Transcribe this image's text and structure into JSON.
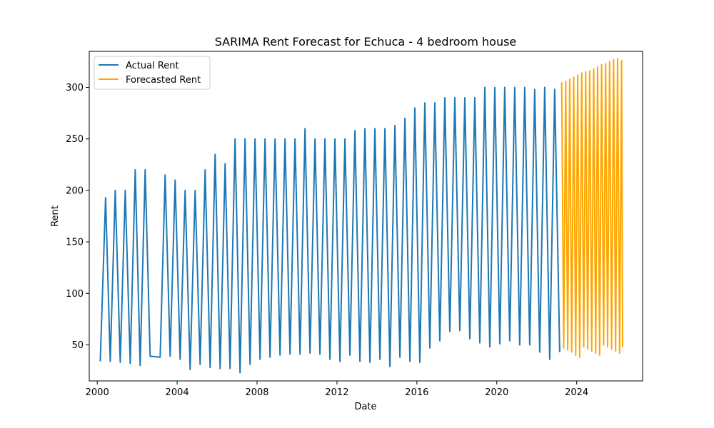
{
  "chart_data": {
    "type": "line",
    "title": "SARIMA Rent Forecast for Echuca - 4 bedroom house",
    "xlabel": "Date",
    "ylabel": "Rent",
    "xlim": [
      1999.6,
      2027.3
    ],
    "ylim": [
      15,
      335
    ],
    "x_ticks": [
      2000,
      2004,
      2008,
      2012,
      2016,
      2020,
      2024
    ],
    "x_tick_labels": [
      "2000",
      "2004",
      "2008",
      "2012",
      "2016",
      "2020",
      "2024"
    ],
    "y_ticks": [
      50,
      100,
      150,
      200,
      250,
      300
    ],
    "y_tick_labels": [
      "50",
      "100",
      "150",
      "200",
      "250",
      "300"
    ],
    "grid": false,
    "legend_position": "top-left",
    "series": [
      {
        "name": "Actual Rent",
        "color": "#1f77b4",
        "points": [
          [
            2000.15,
            34
          ],
          [
            2000.42,
            193
          ],
          [
            2000.65,
            34
          ],
          [
            2000.9,
            200
          ],
          [
            2001.15,
            33
          ],
          [
            2001.4,
            200
          ],
          [
            2001.65,
            32
          ],
          [
            2001.9,
            220
          ],
          [
            2002.15,
            30
          ],
          [
            2002.4,
            220
          ],
          [
            2002.65,
            39
          ],
          [
            2003.15,
            38
          ],
          [
            2003.4,
            215
          ],
          [
            2003.65,
            39
          ],
          [
            2003.9,
            210
          ],
          [
            2004.15,
            36
          ],
          [
            2004.4,
            200
          ],
          [
            2004.65,
            26
          ],
          [
            2004.9,
            200
          ],
          [
            2005.15,
            31
          ],
          [
            2005.4,
            220
          ],
          [
            2005.65,
            28
          ],
          [
            2005.9,
            235
          ],
          [
            2006.15,
            27
          ],
          [
            2006.4,
            226
          ],
          [
            2006.65,
            27
          ],
          [
            2006.9,
            250
          ],
          [
            2007.15,
            23
          ],
          [
            2007.4,
            250
          ],
          [
            2007.65,
            31
          ],
          [
            2007.9,
            250
          ],
          [
            2008.15,
            36
          ],
          [
            2008.4,
            250
          ],
          [
            2008.65,
            38
          ],
          [
            2008.9,
            250
          ],
          [
            2009.15,
            40
          ],
          [
            2009.4,
            250
          ],
          [
            2009.65,
            41
          ],
          [
            2009.9,
            250
          ],
          [
            2010.15,
            41
          ],
          [
            2010.4,
            260
          ],
          [
            2010.65,
            42
          ],
          [
            2010.9,
            250
          ],
          [
            2011.15,
            41
          ],
          [
            2011.4,
            250
          ],
          [
            2011.65,
            36
          ],
          [
            2011.9,
            250
          ],
          [
            2012.15,
            34
          ],
          [
            2012.4,
            250
          ],
          [
            2012.65,
            40
          ],
          [
            2012.9,
            258
          ],
          [
            2013.15,
            34
          ],
          [
            2013.4,
            260
          ],
          [
            2013.65,
            33
          ],
          [
            2013.9,
            260
          ],
          [
            2014.15,
            36
          ],
          [
            2014.4,
            260
          ],
          [
            2014.65,
            29
          ],
          [
            2014.9,
            263
          ],
          [
            2015.15,
            38
          ],
          [
            2015.4,
            270
          ],
          [
            2015.65,
            34
          ],
          [
            2015.9,
            280
          ],
          [
            2016.15,
            33
          ],
          [
            2016.4,
            285
          ],
          [
            2016.65,
            47
          ],
          [
            2016.9,
            285
          ],
          [
            2017.15,
            54
          ],
          [
            2017.4,
            290
          ],
          [
            2017.65,
            63
          ],
          [
            2017.9,
            290
          ],
          [
            2018.15,
            64
          ],
          [
            2018.4,
            290
          ],
          [
            2018.65,
            56
          ],
          [
            2018.9,
            290
          ],
          [
            2019.15,
            52
          ],
          [
            2019.4,
            300
          ],
          [
            2019.65,
            48
          ],
          [
            2019.9,
            300
          ],
          [
            2020.15,
            51
          ],
          [
            2020.4,
            300
          ],
          [
            2020.65,
            54
          ],
          [
            2020.9,
            300
          ],
          [
            2021.15,
            50
          ],
          [
            2021.4,
            300
          ],
          [
            2021.65,
            50
          ],
          [
            2021.9,
            298
          ],
          [
            2022.15,
            43
          ],
          [
            2022.4,
            300
          ],
          [
            2022.65,
            36
          ],
          [
            2022.9,
            298
          ],
          [
            2023.15,
            43
          ]
        ]
      },
      {
        "name": "Forecasted Rent",
        "color": "#ffa500",
        "points": [
          [
            2023.25,
            305
          ],
          [
            2023.35,
            47
          ],
          [
            2023.45,
            306
          ],
          [
            2023.55,
            45
          ],
          [
            2023.65,
            308
          ],
          [
            2023.75,
            43
          ],
          [
            2023.85,
            310
          ],
          [
            2023.95,
            40
          ],
          [
            2024.05,
            312
          ],
          [
            2024.15,
            38
          ],
          [
            2024.25,
            314
          ],
          [
            2024.35,
            48
          ],
          [
            2024.45,
            315
          ],
          [
            2024.55,
            46
          ],
          [
            2024.65,
            316
          ],
          [
            2024.75,
            44
          ],
          [
            2024.85,
            318
          ],
          [
            2024.95,
            42
          ],
          [
            2025.05,
            320
          ],
          [
            2025.15,
            40
          ],
          [
            2025.25,
            322
          ],
          [
            2025.35,
            50
          ],
          [
            2025.45,
            323
          ],
          [
            2025.55,
            48
          ],
          [
            2025.65,
            325
          ],
          [
            2025.75,
            46
          ],
          [
            2025.85,
            327
          ],
          [
            2025.95,
            44
          ],
          [
            2026.05,
            328
          ],
          [
            2026.15,
            42
          ],
          [
            2026.25,
            326
          ],
          [
            2026.3,
            48
          ]
        ]
      }
    ]
  }
}
